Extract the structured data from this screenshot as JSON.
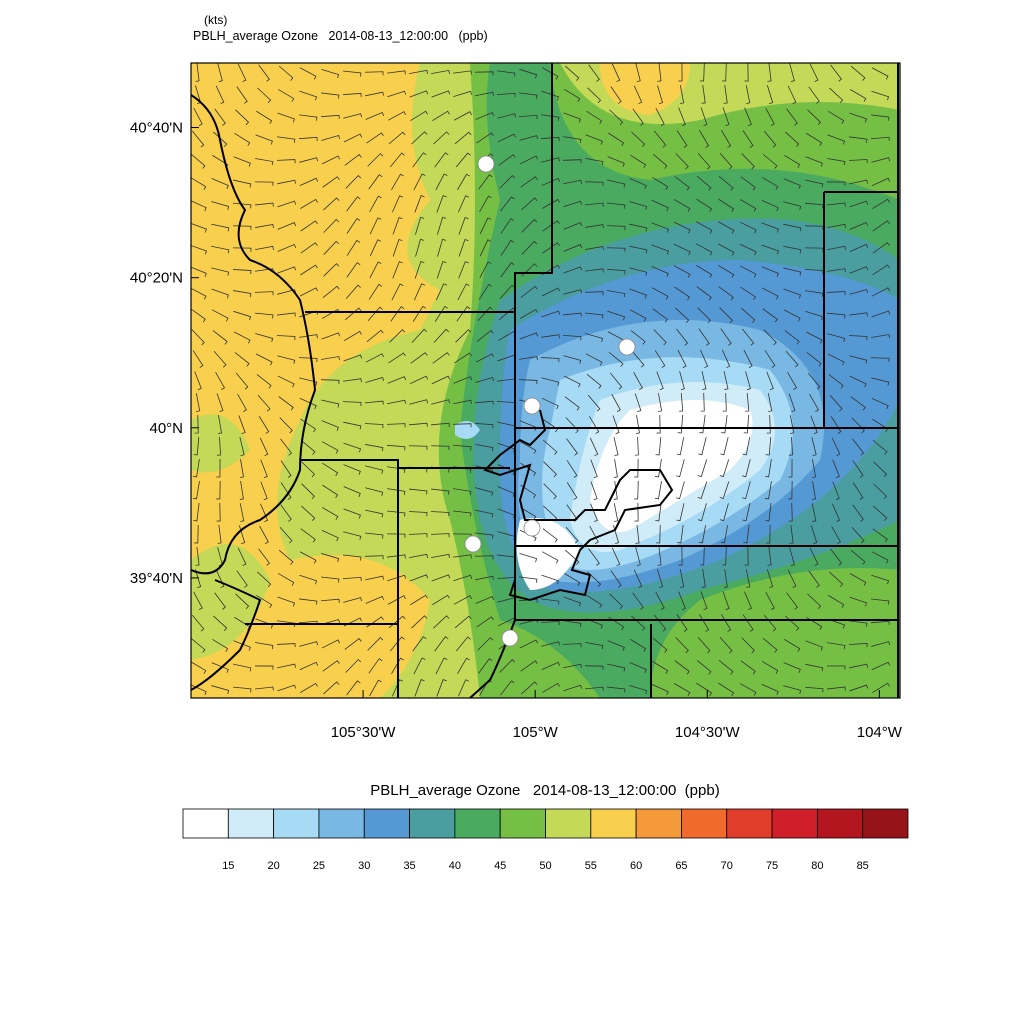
{
  "units_label": "(kts)",
  "title": "PBLH_average Ozone   2014-08-13_12:00:00   (ppb)",
  "map": {
    "lon_range": [
      -106,
      -103.94
    ],
    "lat_range": [
      39.4,
      40.81
    ],
    "lat_ticks": [
      {
        "value": 40.6667,
        "label": "40°40'N"
      },
      {
        "value": 40.3333,
        "label": "40°20'N"
      },
      {
        "value": 40,
        "label": "40°N"
      },
      {
        "value": 39.6667,
        "label": "39°40'N"
      }
    ],
    "lon_ticks": [
      {
        "value": -105.5,
        "label": "105°30'W"
      },
      {
        "value": -105,
        "label": "105°W"
      },
      {
        "value": -104.5,
        "label": "104°30'W"
      },
      {
        "value": -104,
        "label": "104°W"
      }
    ]
  },
  "colorbar": {
    "title": "PBLH_average Ozone   2014-08-13_12:00:00  (ppb)",
    "labels": [
      "15",
      "20",
      "25",
      "30",
      "35",
      "40",
      "45",
      "50",
      "55",
      "60",
      "65",
      "70",
      "75",
      "80",
      "85"
    ],
    "colors": [
      "#ffffff",
      "#d0ecf8",
      "#a6daf5",
      "#7ab8e4",
      "#5599d4",
      "#4a9ea0",
      "#4aaa5f",
      "#76bf45",
      "#c3d957",
      "#f9cf4e",
      "#f59a3a",
      "#f06a2c",
      "#e03e2b",
      "#d01f2a",
      "#b4161f",
      "#961419"
    ]
  }
}
